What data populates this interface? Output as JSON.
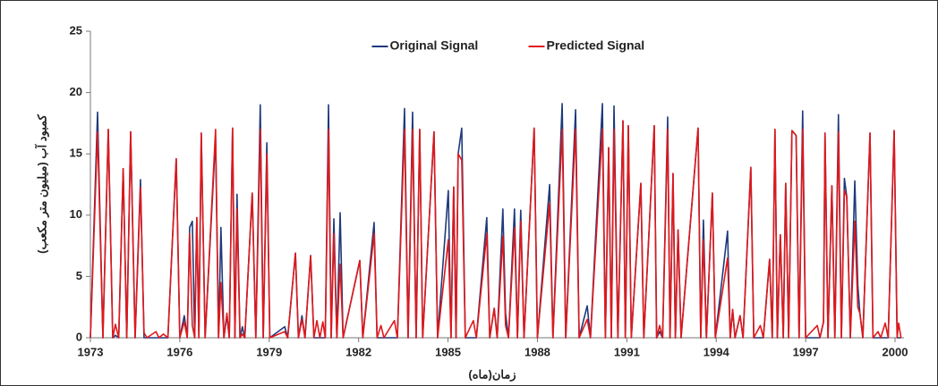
{
  "chart_data": {
    "type": "line",
    "x_label": "زمان(ماه)",
    "y_label": "کمبود آب (میلیون متر مکعب)",
    "legend": "top",
    "xlim": [
      1973,
      2000.3
    ],
    "xticks": [
      1973,
      1976,
      1979,
      1982,
      1985,
      1988,
      1991,
      1994,
      1997,
      2000
    ],
    "ylim": [
      0,
      25
    ],
    "yticks": [
      0,
      5,
      10,
      15,
      20,
      25
    ],
    "x": [
      1973.0,
      1973.24,
      1973.42,
      1973.6,
      1973.75,
      1973.84,
      1973.95,
      1974.1,
      1974.22,
      1974.35,
      1974.5,
      1974.68,
      1974.8,
      1974.9,
      1975.2,
      1975.3,
      1975.45,
      1975.6,
      1975.88,
      1976.0,
      1976.15,
      1976.25,
      1976.33,
      1976.42,
      1976.5,
      1976.57,
      1976.64,
      1976.72,
      1976.85,
      1977.2,
      1977.3,
      1977.38,
      1977.48,
      1977.58,
      1977.66,
      1977.77,
      1977.85,
      1977.92,
      1978.02,
      1978.1,
      1978.18,
      1978.43,
      1978.55,
      1978.7,
      1978.8,
      1978.92,
      1979.02,
      1979.52,
      1979.62,
      1979.88,
      1979.98,
      1980.1,
      1980.2,
      1980.39,
      1980.5,
      1980.6,
      1980.7,
      1980.8,
      1980.88,
      1980.99,
      1981.08,
      1981.17,
      1981.27,
      1981.38,
      1981.48,
      1982.04,
      1982.14,
      1982.52,
      1982.62,
      1982.75,
      1982.85,
      1983.2,
      1983.3,
      1983.54,
      1983.66,
      1983.81,
      1983.93,
      1984.05,
      1984.15,
      1984.53,
      1984.65,
      1985.01,
      1985.1,
      1985.19,
      1985.27,
      1985.34,
      1985.46,
      1985.58,
      1985.85,
      1985.95,
      1986.3,
      1986.4,
      1986.55,
      1986.65,
      1986.84,
      1986.93,
      1987.03,
      1987.23,
      1987.33,
      1987.44,
      1987.55,
      1987.89,
      1988.0,
      1988.41,
      1988.52,
      1988.83,
      1988.95,
      1989.28,
      1989.4,
      1989.67,
      1989.78,
      1990.18,
      1990.28,
      1990.39,
      1990.48,
      1990.57,
      1990.7,
      1990.87,
      1990.95,
      1991.05,
      1991.15,
      1991.47,
      1991.57,
      1991.92,
      1992.0,
      1992.1,
      1992.2,
      1992.37,
      1992.45,
      1992.55,
      1992.63,
      1992.72,
      1992.82,
      1993.39,
      1993.48,
      1993.57,
      1993.67,
      1993.87,
      1993.97,
      1994.38,
      1994.47,
      1994.55,
      1994.63,
      1994.8,
      1994.9,
      1995.16,
      1995.26,
      1995.48,
      1995.58,
      1995.79,
      1995.88,
      1995.97,
      1996.05,
      1996.15,
      1996.25,
      1996.33,
      1996.43,
      1996.54,
      1996.68,
      1996.78,
      1996.9,
      1997.0,
      1997.39,
      1997.48,
      1997.6,
      1997.65,
      1997.75,
      1997.88,
      1997.98,
      1998.1,
      1998.2,
      1998.3,
      1998.38,
      1998.5,
      1998.65,
      1998.75,
      1998.82,
      1998.92,
      1999.16,
      1999.26,
      1999.43,
      1999.52,
      1999.67,
      1999.77,
      1999.97,
      2000.07,
      2000.12,
      2000.2
    ],
    "series": [
      {
        "name": "Original Signal",
        "color": "#1f3a7a",
        "values": [
          0,
          18.4,
          0,
          17,
          0,
          0.2,
          0,
          13.8,
          0,
          16.8,
          0,
          12.9,
          0,
          0,
          0,
          0,
          0,
          0,
          14.6,
          0,
          1.8,
          0,
          9,
          9.5,
          0,
          9.8,
          0,
          16.7,
          0,
          16.3,
          0,
          9,
          0,
          1.8,
          0,
          17.1,
          0,
          11.7,
          0,
          0.9,
          0,
          11.8,
          0,
          19,
          0,
          15.9,
          0,
          0.9,
          0,
          6.9,
          0,
          1.8,
          0,
          6.7,
          0,
          0,
          0,
          0,
          0,
          19,
          0,
          9.7,
          0,
          10.2,
          0,
          6.3,
          0,
          9.4,
          0,
          0,
          0,
          0,
          0,
          18.7,
          0,
          18.4,
          0,
          17,
          0,
          16.8,
          0,
          12,
          0,
          12.3,
          0,
          15,
          17.1,
          0,
          0,
          0,
          9.8,
          0,
          2.4,
          0,
          10.5,
          2,
          0,
          10.5,
          0,
          10.4,
          0,
          17.1,
          0,
          12.5,
          0,
          19.1,
          0,
          18.6,
          0,
          2.6,
          0,
          19.1,
          0,
          15.5,
          0,
          18.9,
          0,
          17.7,
          0,
          17.3,
          0,
          12.6,
          0,
          17.3,
          0,
          0.5,
          0,
          18,
          0,
          13.4,
          0,
          8.8,
          0,
          17.1,
          0,
          9.6,
          0,
          11.8,
          0,
          8.7,
          0,
          2.3,
          0,
          1.8,
          0,
          13.9,
          0,
          0,
          0,
          6.4,
          0,
          17,
          0,
          8.4,
          0,
          12.6,
          0,
          16.9,
          16.5,
          0,
          18.5,
          0,
          0,
          0,
          1.3,
          16.7,
          0,
          12.4,
          0,
          18.2,
          0,
          13,
          11.5,
          0,
          12.8,
          4.3,
          2,
          0,
          16.7,
          0,
          0,
          0,
          0,
          0,
          16.9,
          0,
          0,
          0
        ]
      },
      {
        "name": "Predicted Signal",
        "color": "#e0181b",
        "values": [
          0,
          16.8,
          0,
          17,
          0,
          1.1,
          0,
          13.8,
          0,
          16.8,
          0,
          12.3,
          0.4,
          0,
          0.5,
          0,
          0.3,
          0,
          14.6,
          0,
          1.3,
          0,
          8.5,
          1,
          0,
          9.8,
          0,
          16.7,
          0,
          17,
          0,
          4.5,
          0,
          2,
          0,
          17.1,
          0,
          10.5,
          0,
          0.3,
          0,
          11.8,
          0,
          17,
          0,
          15,
          0,
          0.5,
          0,
          6.9,
          0,
          1.5,
          0,
          6.7,
          0,
          1.4,
          0,
          1.3,
          0,
          17,
          0,
          8.5,
          0,
          6,
          0,
          6.3,
          0,
          8.5,
          0,
          1,
          0,
          1.4,
          0,
          17,
          0,
          17,
          0,
          17,
          0,
          16.8,
          0,
          8,
          0,
          12.3,
          0,
          15,
          14.5,
          0,
          1.4,
          0,
          8.5,
          0,
          2.4,
          0,
          8.3,
          1,
          0,
          9,
          0,
          9.5,
          0,
          17.1,
          0,
          11,
          0,
          17,
          0,
          17,
          0,
          1.5,
          0,
          17,
          0,
          15.5,
          0,
          17,
          0,
          17.7,
          0,
          17.3,
          0,
          12.6,
          0,
          17.3,
          0,
          1,
          0,
          17,
          0,
          13.4,
          0,
          8.8,
          0,
          17.1,
          0,
          8,
          0,
          11.8,
          0,
          6.5,
          0,
          2.3,
          0,
          1.8,
          0,
          13.9,
          0,
          1,
          0,
          6.4,
          0,
          17,
          0,
          8.4,
          0,
          12.6,
          0,
          16.9,
          16.5,
          0,
          17,
          0,
          1,
          0,
          1.3,
          16.7,
          0,
          12.4,
          0,
          16.8,
          0,
          12,
          11.5,
          0,
          9.5,
          2.5,
          2,
          0,
          16.7,
          0,
          0.5,
          0,
          1.2,
          0,
          16.9,
          0,
          1.2,
          0
        ]
      }
    ]
  }
}
